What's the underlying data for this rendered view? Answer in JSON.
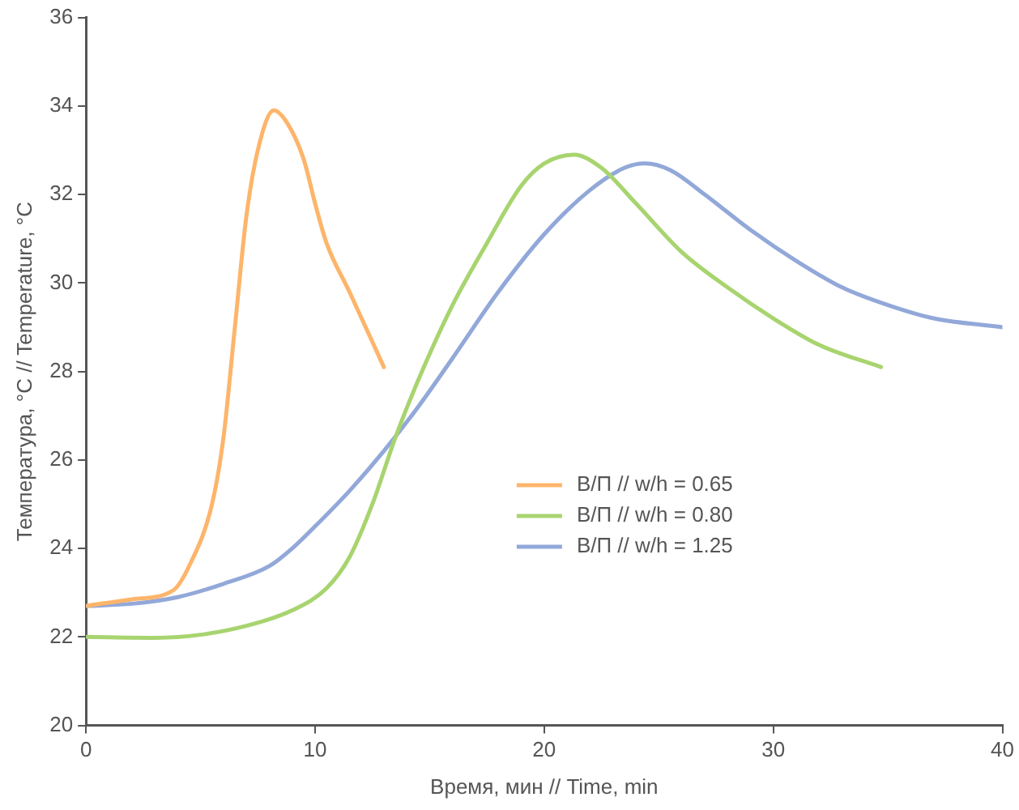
{
  "chart_data": {
    "type": "line",
    "xlabel": "Время, мин // Time, min",
    "ylabel": "Температура, °C // Temperature, °C",
    "xlim": [
      0,
      40
    ],
    "xticks": [
      0,
      10,
      20,
      30,
      40
    ],
    "ylim": [
      20,
      36
    ],
    "yticks": [
      20,
      22,
      24,
      26,
      28,
      30,
      32,
      34,
      36
    ],
    "grid": false,
    "legend": "right",
    "marker": "none",
    "line_style": "solid",
    "series": [
      {
        "name": "В/П // w/h = 0.65",
        "color": "#fdb56b",
        "x": [
          0,
          2,
          3.8,
          4.5,
          5.5,
          6,
          6.5,
          7,
          7.5,
          8.2,
          8.8,
          9.5,
          10,
          10.5,
          11.5,
          13
        ],
        "values": [
          22.7,
          22.85,
          23.05,
          23.6,
          25,
          26.5,
          29,
          31.5,
          33,
          33.9,
          33.6,
          32.8,
          31.8,
          30.9,
          29.8,
          28.1
        ]
      },
      {
        "name": "В/П // w/h = 0.80",
        "color": "#a8d46f",
        "x": [
          0,
          3,
          5,
          7,
          9,
          10.5,
          11.5,
          12.5,
          13.5,
          14.5,
          16,
          17.5,
          19,
          20,
          21.3,
          22.5,
          24,
          26,
          28,
          30,
          32,
          34.7
        ],
        "values": [
          22,
          21.98,
          22.05,
          22.25,
          22.6,
          23.1,
          23.8,
          25,
          26.5,
          27.8,
          29.5,
          30.9,
          32.2,
          32.7,
          32.9,
          32.6,
          31.8,
          30.7,
          29.9,
          29.2,
          28.6,
          28.1
        ]
      },
      {
        "name": "В/П // w/h = 1.25",
        "color": "#92a8d9",
        "x": [
          0,
          2,
          4,
          6,
          8,
          9,
          10,
          11.5,
          13,
          14.5,
          16,
          18,
          20,
          22,
          23.5,
          24.4,
          25.5,
          27,
          29,
          31,
          33,
          35,
          37,
          40
        ],
        "values": [
          22.7,
          22.75,
          22.9,
          23.2,
          23.6,
          24,
          24.5,
          25.3,
          26.2,
          27.2,
          28.3,
          29.8,
          31.1,
          32.1,
          32.6,
          32.7,
          32.55,
          32,
          31.2,
          30.5,
          29.9,
          29.5,
          29.2,
          29
        ]
      }
    ]
  }
}
